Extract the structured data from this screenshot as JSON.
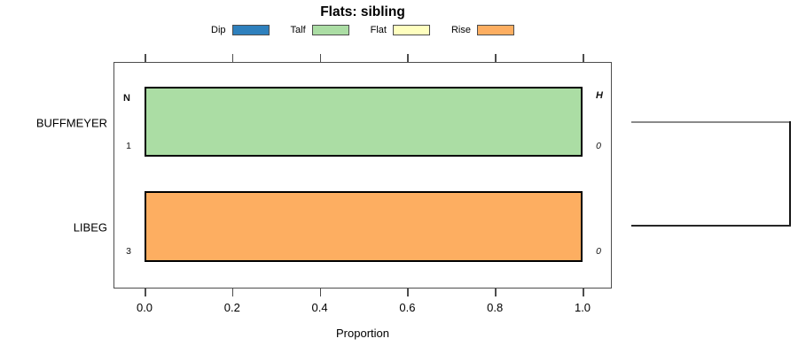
{
  "chart_data": {
    "type": "bar",
    "orientation": "horizontal",
    "title": "Flats: sibling",
    "xlabel": "Proportion",
    "xlim": [
      0,
      1
    ],
    "xticks": [
      "0.0",
      "0.2",
      "0.4",
      "0.6",
      "0.8",
      "1.0"
    ],
    "grid": false,
    "legend_position": "top-center",
    "legend": [
      {
        "label": "Dip",
        "color": "#2E80BD"
      },
      {
        "label": "Talf",
        "color": "#ABDDA4"
      },
      {
        "label": "Flat",
        "color": "#FFFFBF"
      },
      {
        "label": "Rise",
        "color": "#FDAE61"
      }
    ],
    "column_headers": {
      "left": "N",
      "right": "H"
    },
    "categories": [
      "BUFFMEYER",
      "LIBEG"
    ],
    "rows": [
      {
        "category": "BUFFMEYER",
        "n": "1",
        "h": "0",
        "segments": [
          {
            "label": "Talf",
            "value": 1.0,
            "color": "#ABDDA4"
          }
        ]
      },
      {
        "category": "LIBEG",
        "n": "3",
        "h": "0",
        "segments": [
          {
            "label": "Rise",
            "value": 1.0,
            "color": "#FDAE61"
          }
        ]
      }
    ],
    "dendrogram": {
      "present": true,
      "position": "right",
      "joins_rows": [
        "BUFFMEYER",
        "LIBEG"
      ]
    },
    "colors": {
      "bar_border": "#000000",
      "axis_box": "#4d4d4d",
      "dendrogram_upper": "#8a8a8a",
      "dendrogram_lower": "#262626"
    }
  }
}
